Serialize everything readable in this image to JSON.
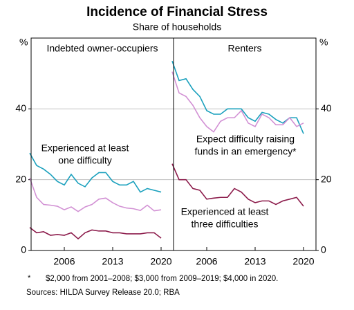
{
  "title": "Incidence of Financial Stress",
  "subtitle": "Share of households",
  "footnote": {
    "marker": "*",
    "text": "$2,000 from 2001–2008; $3,000 from 2009–2019; $4,000 in 2020."
  },
  "source": "Sources: HILDA Survey Release 20.0; RBA",
  "chart_data": [
    {
      "type": "line",
      "title": "Indebted owner-occupiers",
      "y_unit": "%",
      "x": [
        2001,
        2002,
        2003,
        2004,
        2005,
        2006,
        2007,
        2008,
        2009,
        2010,
        2011,
        2012,
        2013,
        2014,
        2015,
        2016,
        2017,
        2018,
        2019,
        2020
      ],
      "xlim": [
        2001.2,
        2021.8
      ],
      "xticks": [
        2006,
        2013,
        2020
      ],
      "ylim": [
        0,
        60
      ],
      "yticks": [
        0,
        20,
        40
      ],
      "grid": true,
      "series": [
        {
          "name": "Experienced at least one difficulty",
          "color": "#1aa0bd",
          "values": [
            27.5,
            24,
            23,
            21.5,
            19.5,
            18.5,
            21.5,
            19,
            18,
            20.5,
            22,
            22,
            19.5,
            18.5,
            18.5,
            19.5,
            16.5,
            17.5,
            17,
            16.5
          ]
        },
        {
          "name": "Expect difficulty raising funds in an emergency*",
          "color": "#d291d4",
          "values": [
            20.5,
            15,
            13,
            12.8,
            12.5,
            11.5,
            12.3,
            11,
            12.3,
            13,
            14.5,
            14.8,
            13.5,
            12.5,
            12,
            11.8,
            11.3,
            12.8,
            11.2,
            11.5
          ]
        },
        {
          "name": "Experienced at least three difficulties",
          "color": "#8b1a4a",
          "values": [
            6.5,
            5,
            5.3,
            4.3,
            4.5,
            4.3,
            5,
            3.3,
            5,
            5.8,
            5.5,
            5.5,
            5,
            5,
            4.7,
            4.7,
            4.7,
            5,
            5,
            3.5
          ]
        }
      ],
      "annotations": [
        {
          "lines": [
            "Experienced at least",
            "one difficulty"
          ],
          "color": "#1aa0bd"
        }
      ]
    },
    {
      "type": "line",
      "title": "Renters",
      "y_unit": "%",
      "x": [
        2001,
        2002,
        2003,
        2004,
        2005,
        2006,
        2007,
        2008,
        2009,
        2010,
        2011,
        2012,
        2013,
        2014,
        2015,
        2016,
        2017,
        2018,
        2019,
        2020
      ],
      "xlim": [
        2001.2,
        2021.8
      ],
      "xticks": [
        2006,
        2013,
        2020
      ],
      "ylim": [
        0,
        60
      ],
      "yticks": [
        0,
        20,
        40
      ],
      "grid": true,
      "series": [
        {
          "name": "Experienced at least one difficulty",
          "color": "#1aa0bd",
          "values": [
            53.5,
            48,
            48.5,
            45.5,
            43.5,
            39.5,
            38.5,
            38.5,
            40,
            40,
            40,
            37.5,
            36.5,
            39,
            38.5,
            37,
            36,
            37.5,
            37.5,
            33
          ]
        },
        {
          "name": "Expect difficulty raising funds in an emergency*",
          "color": "#d291d4",
          "values": [
            50.5,
            44.5,
            43.5,
            41,
            37.5,
            35,
            33.5,
            36.5,
            37.5,
            37.5,
            39.5,
            36,
            35,
            38.5,
            37.5,
            35.5,
            35.5,
            37.5,
            35,
            36
          ]
        },
        {
          "name": "Experienced at least three difficulties",
          "color": "#8b1a4a",
          "values": [
            24.5,
            20,
            20,
            17.5,
            17,
            14.5,
            14.8,
            15,
            15,
            17.5,
            16.5,
            14.5,
            13.5,
            14,
            14,
            13,
            14,
            14.5,
            15,
            12.5
          ]
        }
      ],
      "annotations": [
        {
          "lines": [
            "Expect difficulty raising",
            "funds in an emergency*"
          ],
          "color": "#d291d4"
        },
        {
          "lines": [
            "Experienced at least",
            "three difficulties"
          ],
          "color": "#8b1a4a"
        }
      ]
    }
  ]
}
